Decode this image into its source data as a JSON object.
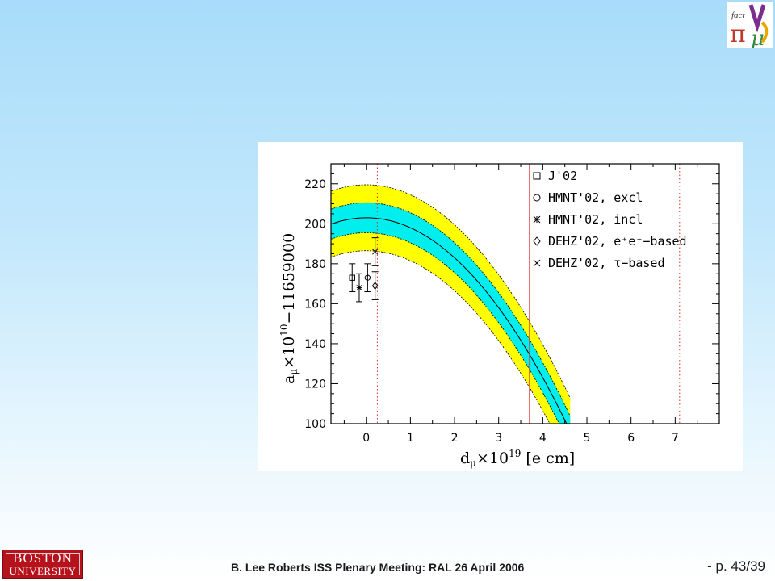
{
  "footer": {
    "text": "B. Lee Roberts  ISS Plenary Meeting: RAL 26 April 2006",
    "page": "- p. 43/39"
  },
  "logo_university": {
    "line1": "BOSTON",
    "line2": "UNIVERSITY"
  },
  "logo_fact": {
    "text": "fact"
  },
  "chart_data": {
    "type": "line",
    "xlabel": "d_μ×10^19 [e cm]",
    "ylabel": "a_μ×10^10 −11659000",
    "xlim": [
      -0.8,
      8.0
    ],
    "ylim": [
      100,
      230
    ],
    "xticks": [
      0,
      1,
      2,
      3,
      4,
      5,
      6,
      7
    ],
    "yticks": [
      100,
      120,
      140,
      160,
      180,
      200,
      220
    ],
    "curve": {
      "a0": 203,
      "k": 5.0,
      "x_range": [
        -0.8,
        4.62
      ]
    },
    "bands": [
      {
        "name": "outer",
        "half_width": 16.5,
        "color": "#ffff00"
      },
      {
        "name": "inner",
        "half_width": 7.5,
        "color": "#00eeee"
      }
    ],
    "vertical_lines": [
      {
        "x": 0.25,
        "style": "dotted",
        "color": "#e03030"
      },
      {
        "x": 3.7,
        "style": "solid",
        "color": "#e03030"
      },
      {
        "x": 7.1,
        "style": "dotted",
        "color": "#e03030"
      }
    ],
    "points": [
      {
        "label": "J'02",
        "marker": "square",
        "x": -0.32,
        "y": 173,
        "err": 7
      },
      {
        "label": "HMNT'02, excl",
        "marker": "circle",
        "x": 0.03,
        "y": 173,
        "err": 7
      },
      {
        "label": "HMNT'02, incl",
        "marker": "star",
        "x": -0.16,
        "y": 168,
        "err": 7
      },
      {
        "label": "DEHZ'02, e⁺e⁻−based",
        "marker": "diamond",
        "x": 0.2,
        "y": 169,
        "err": 7
      },
      {
        "label": "DEHZ'02, τ−based",
        "marker": "x",
        "x": 0.2,
        "y": 186,
        "err": 7
      }
    ],
    "legend_placement": "top-right"
  }
}
